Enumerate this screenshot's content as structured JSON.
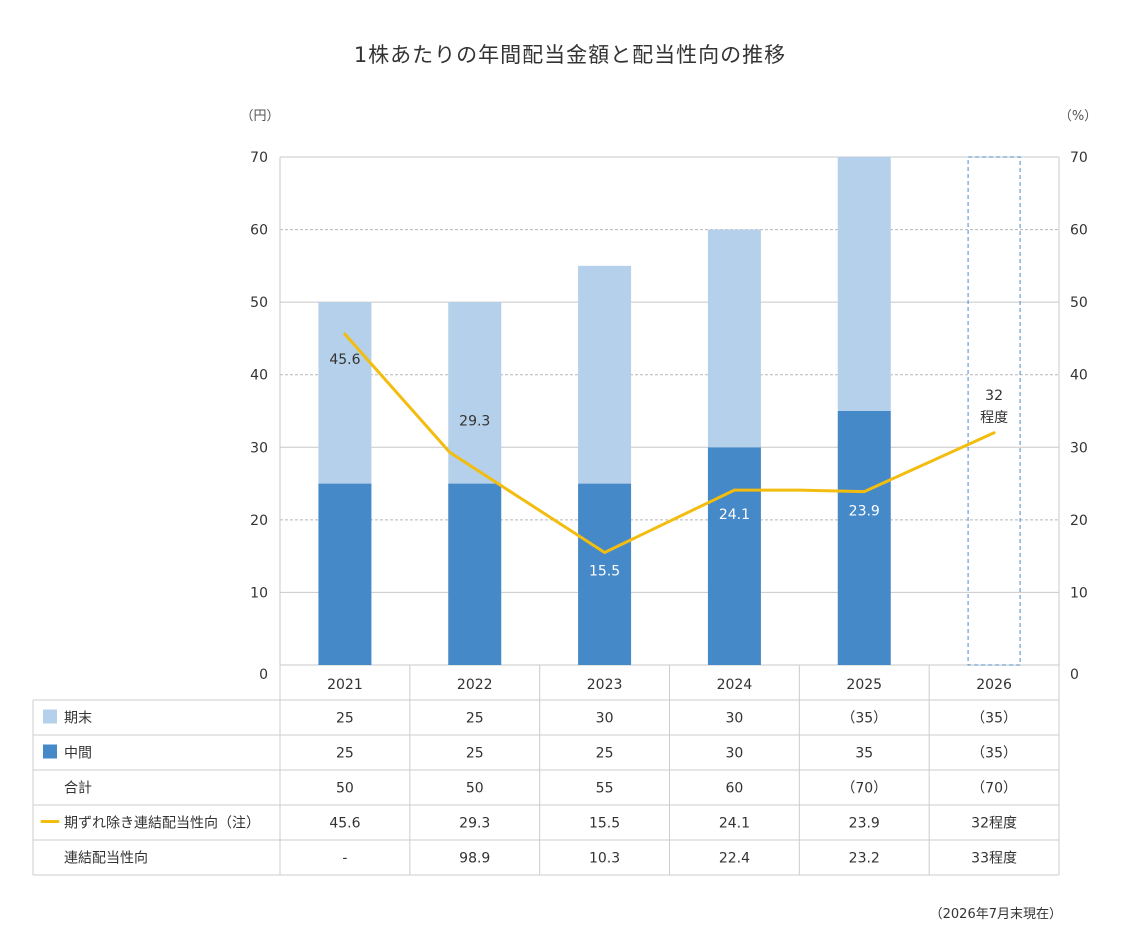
{
  "chart_data": {
    "type": "bar",
    "title": "1株あたりの年間配当金額と配当性向の推移",
    "y_unit_left": "（円）",
    "y_unit_right": "（%）",
    "ylim": [
      0,
      70
    ],
    "yticks": [
      0,
      10,
      20,
      30,
      40,
      50,
      60,
      70
    ],
    "categories": [
      "2021",
      "2022",
      "2023",
      "2024",
      "2025",
      "2026"
    ],
    "stacked": true,
    "series": [
      {
        "name": "中間",
        "type": "bar",
        "color": "#4589c8",
        "values": [
          25,
          25,
          25,
          30,
          35,
          null
        ]
      },
      {
        "name": "期末",
        "type": "bar",
        "color": "#b5d0ea",
        "values": [
          25,
          25,
          30,
          30,
          35,
          null
        ]
      },
      {
        "name": "期ずれ除き連結配当性向（注）",
        "type": "line",
        "axis": "right",
        "color": "#f2bd0f",
        "values": [
          45.6,
          29.3,
          15.5,
          24.1,
          23.9,
          32
        ],
        "labels": [
          "45.6",
          "29.3",
          "15.5",
          "24.1",
          "23.9",
          "32 程度"
        ]
      }
    ],
    "forecast_category": "2026",
    "forecast_frame_color": "#4a8ac5",
    "grid": true
  },
  "table": {
    "rows": [
      {
        "legend": "期末",
        "marker": "light-bar",
        "cells": [
          "25",
          "25",
          "30",
          "30",
          "（35）",
          "（35）"
        ]
      },
      {
        "legend": "中間",
        "marker": "dark-bar",
        "cells": [
          "25",
          "25",
          "25",
          "30",
          "35",
          "（35）"
        ]
      },
      {
        "legend": "合計",
        "marker": "none",
        "cells": [
          "50",
          "50",
          "55",
          "60",
          "（70）",
          "（70）"
        ]
      },
      {
        "legend": "期ずれ除き連結配当性向（注）",
        "marker": "line",
        "cells": [
          "45.6",
          "29.3",
          "15.5",
          "24.1",
          "23.9",
          "32程度"
        ]
      },
      {
        "legend": "連結配当性向",
        "marker": "none",
        "cells": [
          "-",
          "98.9",
          "10.3",
          "22.4",
          "23.2",
          "33程度"
        ]
      }
    ]
  },
  "footnote": "（2026年7月末現在）"
}
